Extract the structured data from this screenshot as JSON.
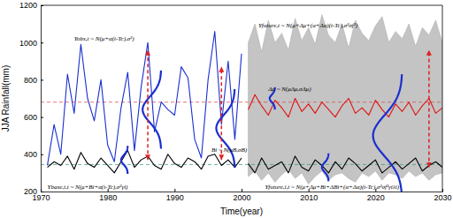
{
  "chart_data": {
    "type": "line",
    "xlabel": "Time(year)",
    "ylabel": "JJA Rainfall(mm)",
    "xlim": [
      1970,
      2030
    ],
    "ylim": [
      200,
      1200
    ],
    "xticks": [
      1970,
      1980,
      1990,
      2000,
      2010,
      2020,
      2030
    ],
    "yticks": [
      200,
      400,
      600,
      800,
      1000,
      1200
    ],
    "grid": false,
    "band": {
      "color": "#c4c4c4",
      "x": [
        2001,
        2002,
        2003,
        2004,
        2005,
        2006,
        2007,
        2008,
        2009,
        2010,
        2011,
        2012,
        2013,
        2014,
        2015,
        2016,
        2017,
        2018,
        2019,
        2020,
        2021,
        2022,
        2023,
        2024,
        2025,
        2026,
        2027,
        2028,
        2029,
        2030
      ],
      "lower": [
        280,
        310,
        260,
        300,
        250,
        290,
        320,
        270,
        300,
        240,
        280,
        310,
        260,
        290,
        300,
        270,
        250,
        300,
        280,
        310,
        260,
        300,
        290,
        270,
        310,
        280,
        300,
        260,
        290,
        300
      ],
      "upper": [
        1000,
        1100,
        950,
        1120,
        1000,
        1050,
        960,
        1130,
        1010,
        1080,
        990,
        1150,
        1040,
        1000,
        1100,
        970,
        1120,
        1050,
        1010,
        1090,
        1140,
        1000,
        1060,
        1020,
        1100,
        980,
        1080,
        1040,
        1120,
        1000
      ]
    },
    "reference_lines": [
      {
        "value": 680,
        "color": "#e05050",
        "line_style": "dashed"
      },
      {
        "value": 345,
        "color": "#3a9a8a",
        "line_style": "dashed"
      }
    ],
    "series": [
      {
        "color": "#1a2fd0",
        "x": [
          1971,
          1972,
          1973,
          1974,
          1975,
          1976,
          1977,
          1978,
          1979,
          1980,
          1981,
          1982,
          1983,
          1984,
          1985,
          1986,
          1987,
          1988,
          1989,
          1990,
          1991,
          1992,
          1993,
          1994,
          1995,
          1996,
          1997,
          1998,
          1999,
          2000
        ],
        "values": [
          340,
          560,
          400,
          830,
          620,
          990,
          700,
          580,
          800,
          450,
          360,
          650,
          840,
          420,
          760,
          1000,
          520,
          680,
          640,
          610,
          870,
          810,
          480,
          380,
          800,
          1060,
          560,
          900,
          480,
          940
        ]
      },
      {
        "color": "#000000",
        "x": [
          1971,
          1972,
          1973,
          1974,
          1975,
          1976,
          1977,
          1978,
          1979,
          1980,
          1981,
          1982,
          1983,
          1984,
          1985,
          1986,
          1987,
          1988,
          1989,
          1990,
          1991,
          1992,
          1993,
          1994,
          1995,
          1996,
          1997,
          1998,
          1999,
          2000
        ],
        "values": [
          330,
          360,
          340,
          390,
          320,
          410,
          350,
          330,
          380,
          340,
          300,
          360,
          420,
          330,
          370,
          390,
          340,
          320,
          400,
          350,
          330,
          380,
          360,
          320,
          390,
          400,
          340,
          370,
          330,
          380
        ]
      },
      {
        "color": "#e01010",
        "x": [
          2001,
          2002,
          2003,
          2004,
          2005,
          2006,
          2007,
          2008,
          2009,
          2010,
          2011,
          2012,
          2013,
          2014,
          2015,
          2016,
          2017,
          2018,
          2019,
          2020,
          2021,
          2022,
          2023,
          2024,
          2025,
          2026,
          2027,
          2028,
          2029,
          2030
        ],
        "values": [
          640,
          720,
          660,
          610,
          690,
          650,
          600,
          700,
          630,
          670,
          620,
          680,
          640,
          600,
          660,
          700,
          620,
          650,
          610,
          690,
          640,
          600,
          670,
          630,
          680,
          610,
          660,
          700,
          620,
          650
        ]
      },
      {
        "color": "#000000",
        "x": [
          2001,
          2002,
          2003,
          2004,
          2005,
          2006,
          2007,
          2008,
          2009,
          2010,
          2011,
          2012,
          2013,
          2014,
          2015,
          2016,
          2017,
          2018,
          2019,
          2020,
          2021,
          2022,
          2023,
          2024,
          2025,
          2026,
          2027,
          2028,
          2029,
          2030
        ],
        "values": [
          350,
          300,
          380,
          320,
          340,
          360,
          300,
          390,
          330,
          310,
          370,
          340,
          300,
          360,
          320,
          380,
          350,
          310,
          340,
          370,
          300,
          330,
          360,
          320,
          350,
          380,
          310,
          340,
          360,
          330
        ]
      }
    ],
    "distributions": [
      {
        "x": 1988,
        "mean": 640,
        "sd": 70,
        "color": "#1a2fd0"
      },
      {
        "x": 1999,
        "mean": 540,
        "sd": 70,
        "color": "#1a2fd0"
      },
      {
        "x": 2024,
        "mean": 500,
        "sd": 110,
        "color": "#1a2fd0"
      },
      {
        "x": 1983,
        "mean": 370,
        "sd": 25,
        "color": "#1a2fd0"
      },
      {
        "x": 2013,
        "mean": 330,
        "sd": 25,
        "color": "#1a2fd0"
      },
      {
        "x": 2005,
        "mean": 700,
        "sd": 20,
        "color": "#1a2fd0"
      }
    ],
    "arrows": [
      {
        "x": 1986,
        "from": 370,
        "to": 960,
        "color": "#e02020",
        "line_style": "dashed"
      },
      {
        "x": 1997,
        "from": 370,
        "to": 870,
        "color": "#e02020",
        "line_style": "dashed"
      },
      {
        "x": 2028,
        "from": 330,
        "to": 960,
        "color": "#e02020",
        "line_style": "dashed"
      }
    ],
    "annotations": [
      {
        "text": "Yobs,t ~ N(μ+α(t-Tc),σ²)",
        "x": 1975,
        "y": 1010
      },
      {
        "text": "Yfuture,t ~ N(μ+Δμ+(α+Δα)(t-Tc),σ²σf²)",
        "x": 2002.5,
        "y": 1080
      },
      {
        "text": "Δμ ~ N(μΔμ,σΔμ)",
        "x": 2004,
        "y": 740
      },
      {
        "text": "Bi ~ N(μB,σB)",
        "x": 1995.5,
        "y": 415
      },
      {
        "text": "Ybase,i,t ~ N(μ+Bi+α(t-Tc),σ²γi)",
        "x": 1971,
        "y": 212
      },
      {
        "text": "Yfuture,i,t ~ N(μ+Δμ+Bi+ΔBi+(α+Δα)(t-Tc),σ²σf²γiλi)",
        "x": 2003.5,
        "y": 212
      }
    ]
  }
}
